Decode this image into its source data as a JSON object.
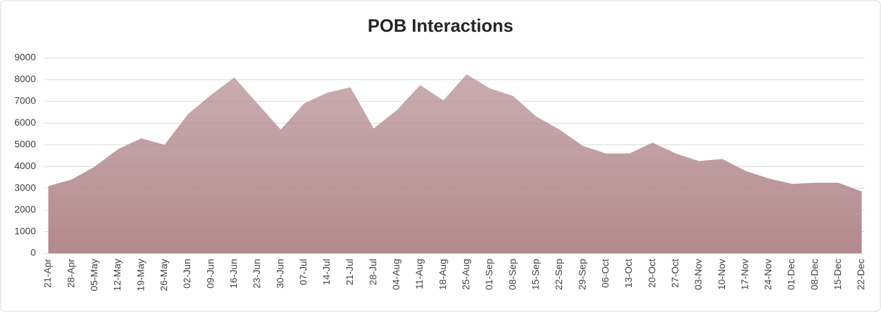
{
  "chart_data": {
    "type": "area",
    "title": "POB Interactions",
    "categories": [
      "21-Apr",
      "28-Apr",
      "05-May",
      "12-May",
      "19-May",
      "26-May",
      "02-Jun",
      "09-Jun",
      "16-Jun",
      "23-Jun",
      "30-Jun",
      "07-Jul",
      "14-Jul",
      "21-Jul",
      "28-Jul",
      "04-Aug",
      "11-Aug",
      "18-Aug",
      "25-Aug",
      "01-Sep",
      "08-Sep",
      "15-Sep",
      "22-Sep",
      "29-Sep",
      "06-Oct",
      "13-Oct",
      "20-Oct",
      "27-Oct",
      "03-Nov",
      "10-Nov",
      "17-Nov",
      "24-Nov",
      "01-Dec",
      "08-Dec",
      "15-Dec",
      "22-Dec"
    ],
    "values": [
      3100,
      3400,
      4000,
      4800,
      5300,
      5000,
      6400,
      7300,
      8100,
      6900,
      5700,
      6900,
      7400,
      7650,
      5750,
      6600,
      7750,
      7050,
      8250,
      7600,
      7250,
      6300,
      5700,
      4950,
      4600,
      4600,
      5100,
      4600,
      4250,
      4350,
      3800,
      3450,
      3200,
      3250,
      3250,
      2850
    ],
    "color": "#b38a8e",
    "ylim": [
      0,
      9000
    ],
    "yticks": [
      0,
      1000,
      2000,
      3000,
      4000,
      5000,
      6000,
      7000,
      8000,
      9000
    ],
    "grid": true
  }
}
